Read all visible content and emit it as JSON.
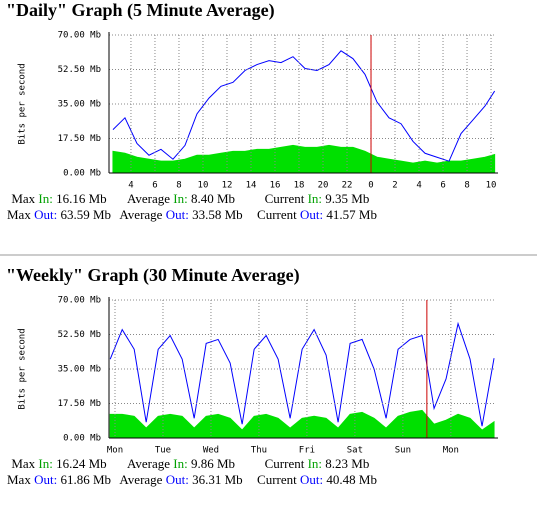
{
  "chart_data": [
    {
      "type": "line",
      "title": "\"Daily\" Graph (5 Minute Average)",
      "ylabel": "Bits per second",
      "xlim": [
        2.17,
        34.33
      ],
      "ylim": [
        0,
        70
      ],
      "grid": true,
      "marker_x": 24,
      "marker_color": "#cc0000",
      "yticks": [
        {
          "value": 0,
          "label": "0.00 Mb"
        },
        {
          "value": 17.5,
          "label": "17.50 Mb"
        },
        {
          "value": 35,
          "label": "35.00 Mb"
        },
        {
          "value": 52.5,
          "label": "52.50 Mb"
        },
        {
          "value": 70,
          "label": "70.00 Mb"
        }
      ],
      "xticks": [
        4,
        6,
        8,
        10,
        12,
        14,
        16,
        18,
        20,
        22,
        {
          "value": 24,
          "label": "0"
        },
        {
          "value": 26,
          "label": "2"
        },
        {
          "value": 28,
          "label": "4"
        },
        {
          "value": 30,
          "label": "6"
        },
        {
          "value": 32,
          "label": "8"
        },
        {
          "value": 34,
          "label": "10"
        }
      ],
      "x": [
        2.5,
        3.5,
        4.5,
        5.5,
        6.5,
        7.5,
        8.5,
        9.5,
        10.5,
        11.5,
        12.5,
        13.5,
        14.5,
        15.5,
        16.5,
        17.5,
        18.5,
        19.5,
        20.5,
        21.5,
        22.5,
        23.5,
        24.5,
        25.5,
        26.5,
        27.5,
        28.5,
        29.5,
        30.5,
        31.5,
        32.5,
        33.5,
        34.3
      ],
      "series": [
        {
          "color": "#00e000",
          "fill": true,
          "values": [
            11,
            10,
            8,
            7,
            6,
            6,
            7,
            9,
            9,
            10,
            11,
            11,
            12,
            12,
            13,
            14,
            13,
            13,
            14,
            13,
            13,
            11,
            8,
            7,
            6,
            5,
            6,
            5,
            6,
            6,
            7,
            8,
            9.35
          ]
        },
        {
          "color": "#0000ff",
          "fill": false,
          "values": [
            22,
            28,
            15,
            9,
            12,
            7,
            14,
            30,
            38,
            44,
            46,
            52,
            55,
            57,
            56,
            59,
            53,
            52,
            55,
            62,
            58,
            50,
            36,
            28,
            25,
            16,
            10,
            8,
            6,
            20,
            27,
            34,
            41.57
          ]
        }
      ],
      "stats": [
        [
          {
            "label": "Max",
            "key": "In:",
            "value": "16.16 Mb"
          },
          {
            "label": "Average",
            "key": "In:",
            "value": "8.40 Mb"
          },
          {
            "label": "Current",
            "key": "In:",
            "value": "9.35 Mb"
          }
        ],
        [
          {
            "label": "Max",
            "key": "Out:",
            "value": "63.59 Mb"
          },
          {
            "label": "Average",
            "key": "Out:",
            "value": "33.58 Mb"
          },
          {
            "label": "Current",
            "key": "Out:",
            "value": "41.57 Mb"
          }
        ]
      ]
    },
    {
      "type": "line",
      "title": "\"Weekly\" Graph (30 Minute Average)",
      "ylabel": "Bits per second",
      "xlim": [
        -0.125,
        7.92
      ],
      "ylim": [
        0,
        70
      ],
      "grid": true,
      "marker_x": 6.5,
      "marker_color": "#cc0000",
      "yticks": [
        {
          "value": 0,
          "label": "0.00 Mb"
        },
        {
          "value": 17.5,
          "label": "17.50 Mb"
        },
        {
          "value": 35,
          "label": "35.00 Mb"
        },
        {
          "value": 52.5,
          "label": "52.50 Mb"
        },
        {
          "value": 70,
          "label": "70.00 Mb"
        }
      ],
      "xticks": [
        {
          "value": 0,
          "label": "Mon"
        },
        {
          "value": 1,
          "label": "Tue"
        },
        {
          "value": 2,
          "label": "Wed"
        },
        {
          "value": 3,
          "label": "Thu"
        },
        {
          "value": 4,
          "label": "Fri"
        },
        {
          "value": 5,
          "label": "Sat"
        },
        {
          "value": 6,
          "label": "Sun"
        },
        {
          "value": 7,
          "label": "Mon"
        }
      ],
      "x": [
        -0.1,
        0.15,
        0.4,
        0.65,
        0.9,
        1.15,
        1.4,
        1.65,
        1.9,
        2.15,
        2.4,
        2.65,
        2.9,
        3.15,
        3.4,
        3.65,
        3.9,
        4.15,
        4.4,
        4.65,
        4.9,
        5.15,
        5.4,
        5.65,
        5.9,
        6.15,
        6.4,
        6.65,
        6.9,
        7.15,
        7.4,
        7.65,
        7.9
      ],
      "series": [
        {
          "color": "#00e000",
          "fill": true,
          "values": [
            12,
            12,
            11,
            5,
            11,
            12,
            11,
            5,
            11,
            12,
            10,
            4,
            11,
            12,
            10,
            5,
            10,
            11,
            10,
            5,
            12,
            13,
            10,
            5,
            11,
            13,
            14,
            7,
            9,
            12,
            10,
            4,
            8.23
          ]
        },
        {
          "color": "#0000ff",
          "fill": false,
          "values": [
            40,
            55,
            45,
            8,
            45,
            52,
            40,
            10,
            48,
            50,
            38,
            7,
            45,
            52,
            40,
            10,
            45,
            55,
            42,
            8,
            48,
            50,
            35,
            10,
            45,
            50,
            52,
            15,
            30,
            58,
            40,
            6,
            40.48
          ]
        }
      ],
      "stats": [
        [
          {
            "label": "Max",
            "key": "In:",
            "value": "16.24 Mb"
          },
          {
            "label": "Average",
            "key": "In:",
            "value": "9.86 Mb"
          },
          {
            "label": "Current",
            "key": "In:",
            "value": "8.23 Mb"
          }
        ],
        [
          {
            "label": "Max",
            "key": "Out:",
            "value": "61.86 Mb"
          },
          {
            "label": "Average",
            "key": "Out:",
            "value": "36.31 Mb"
          },
          {
            "label": "Current",
            "key": "Out:",
            "value": "40.48 Mb"
          }
        ]
      ]
    }
  ]
}
